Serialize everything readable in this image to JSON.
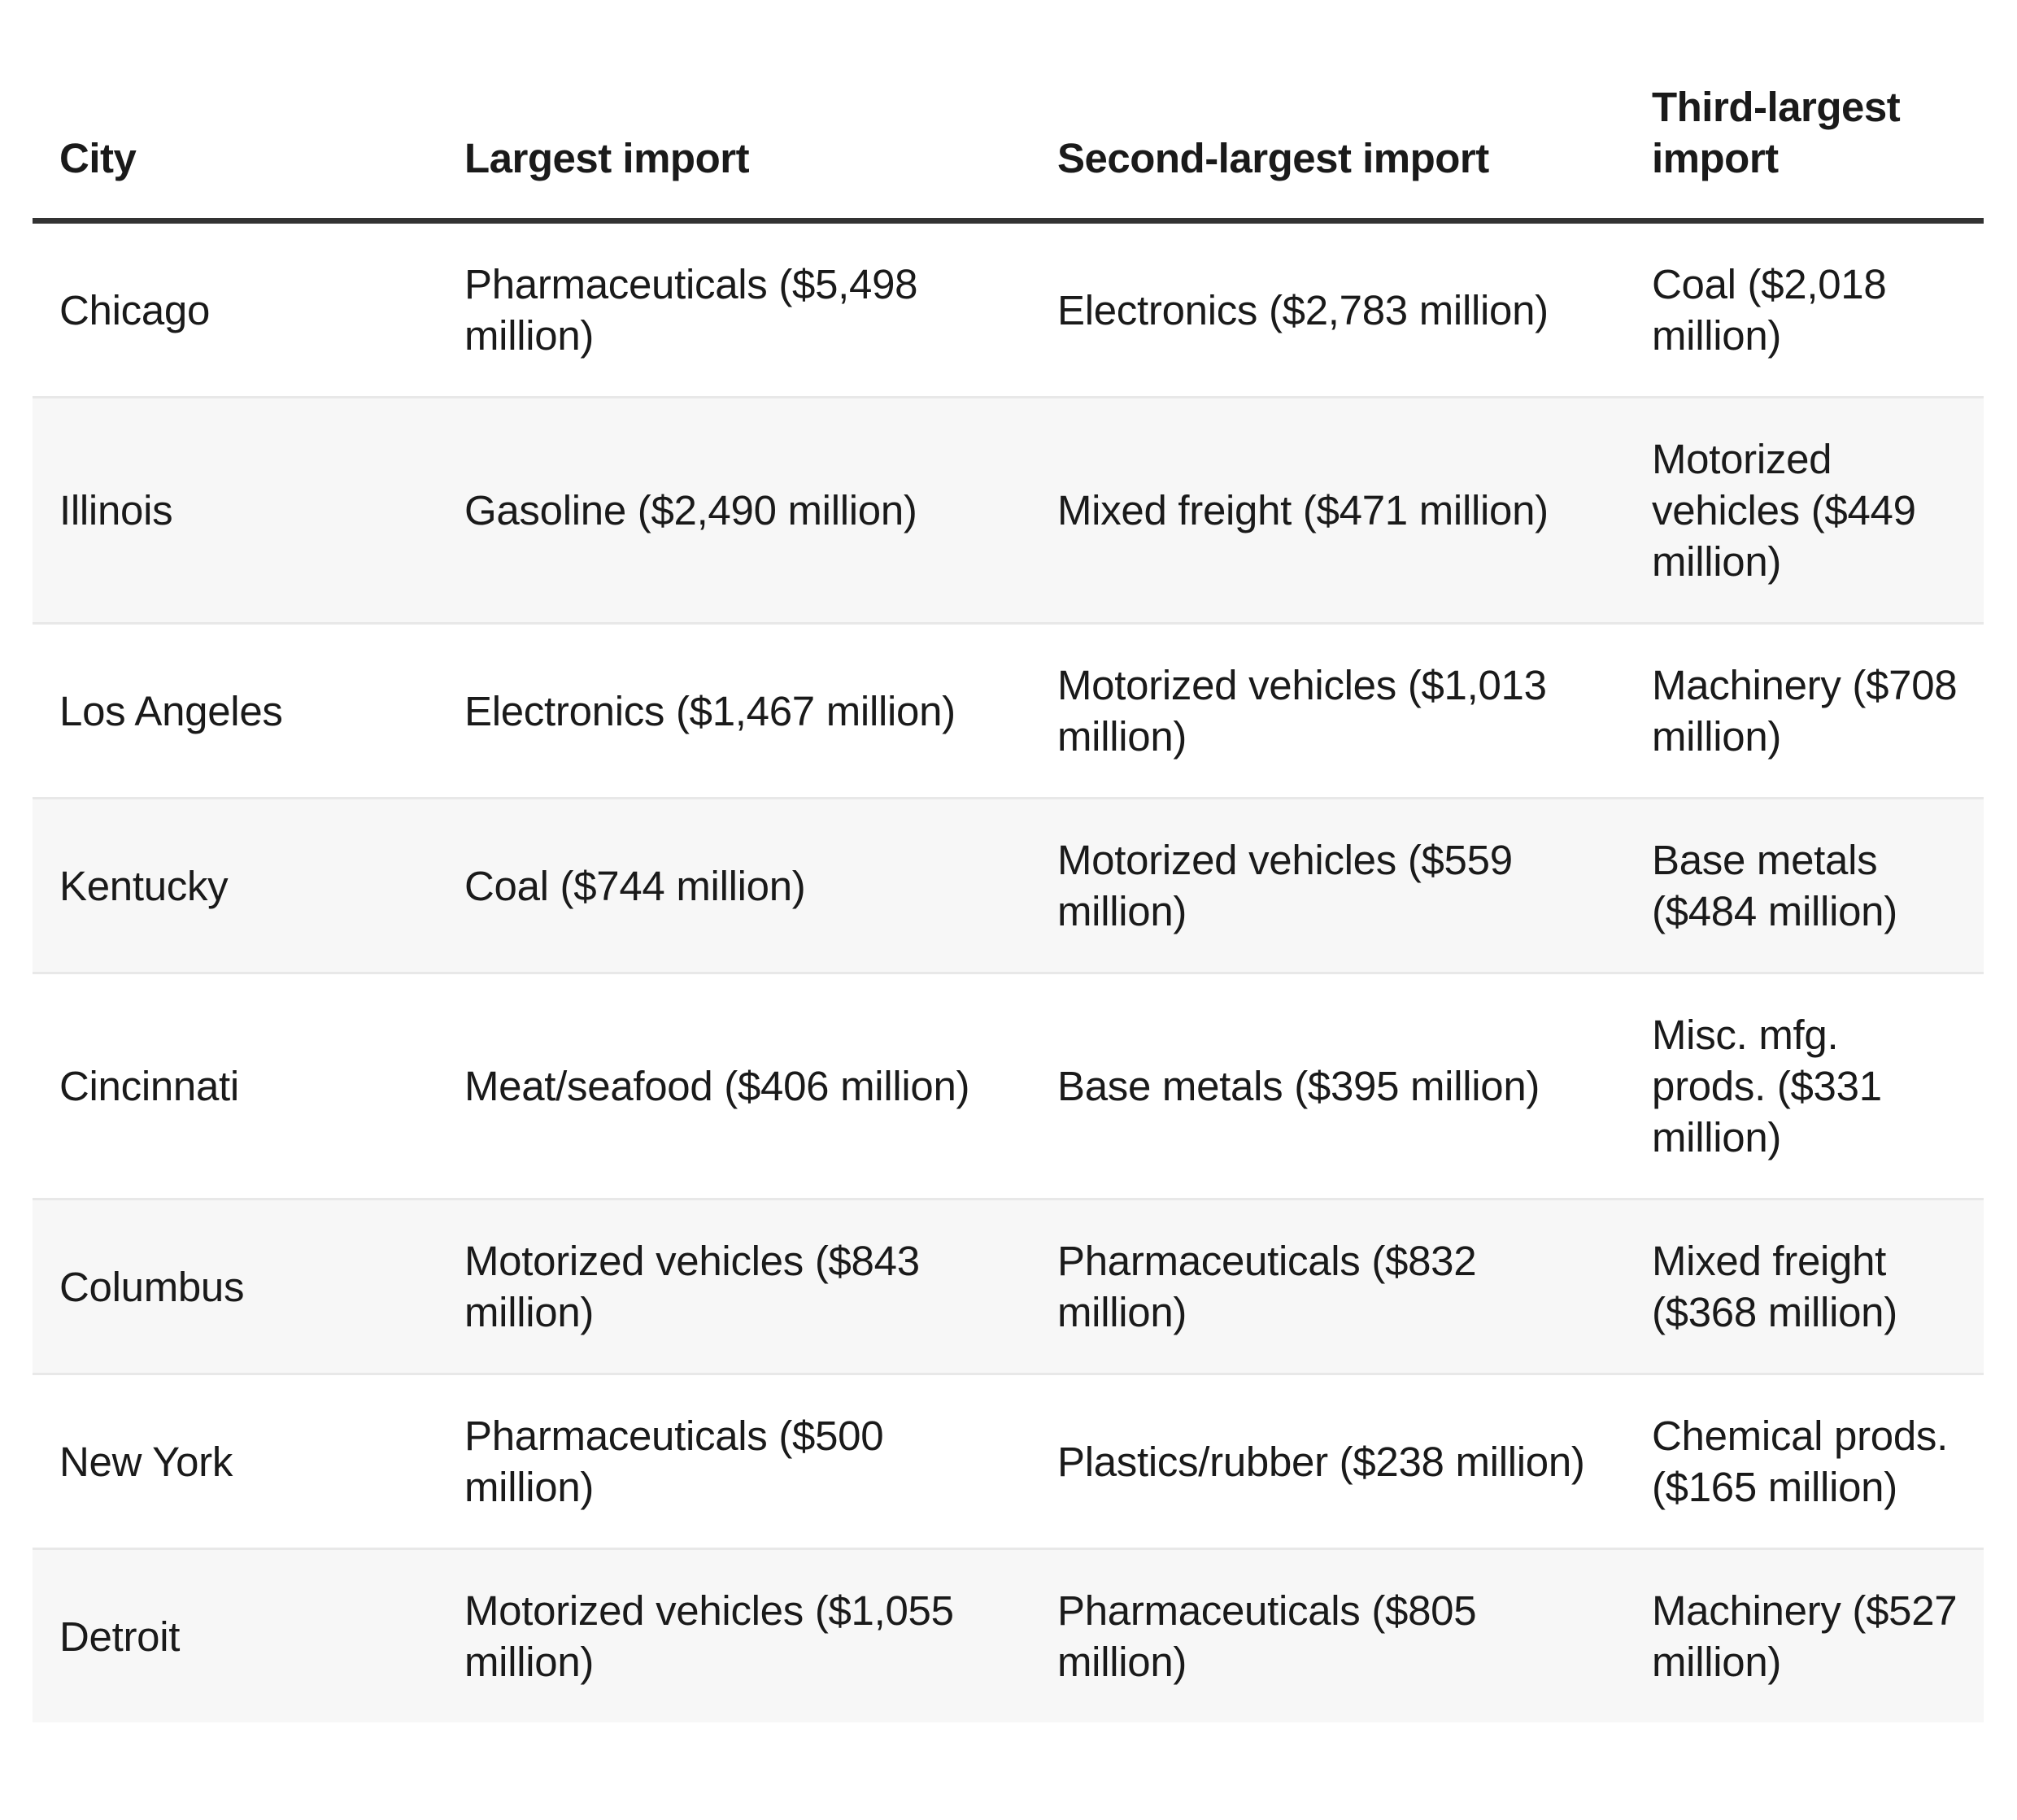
{
  "table": {
    "headers": [
      "City",
      "Largest import",
      "Second-largest import",
      "Third-largest import"
    ],
    "rows": [
      [
        "Chicago",
        "Pharmaceuticals ($5,498 million)",
        "Electronics ($2,783 million)",
        "Coal ($2,018 million)"
      ],
      [
        "Illinois",
        "Gasoline ($2,490 million)",
        "Mixed freight ($471 million)",
        "Motorized vehicles ($449 million)"
      ],
      [
        "Los Angeles",
        "Electronics ($1,467 million)",
        "Motorized vehicles ($1,013 million)",
        "Machinery ($708 million)"
      ],
      [
        "Kentucky",
        "Coal ($744 million)",
        "Motorized vehicles ($559 million)",
        "Base metals ($484 million)"
      ],
      [
        "Cincinnati",
        "Meat/seafood ($406 million)",
        "Base metals ($395 million)",
        "Misc. mfg. prods. ($331 million)"
      ],
      [
        "Columbus",
        "Motorized vehicles ($843 million)",
        "Pharmaceuticals ($832 million)",
        "Mixed freight ($368 million)"
      ],
      [
        "New York",
        "Pharmaceuticals ($500 million)",
        "Plastics/rubber ($238 million)",
        "Chemical prods. ($165 million)"
      ],
      [
        "Detroit",
        "Motorized vehicles ($1,055 million)",
        "Pharmaceuticals ($805 million)",
        "Machinery ($527 million)"
      ]
    ]
  }
}
